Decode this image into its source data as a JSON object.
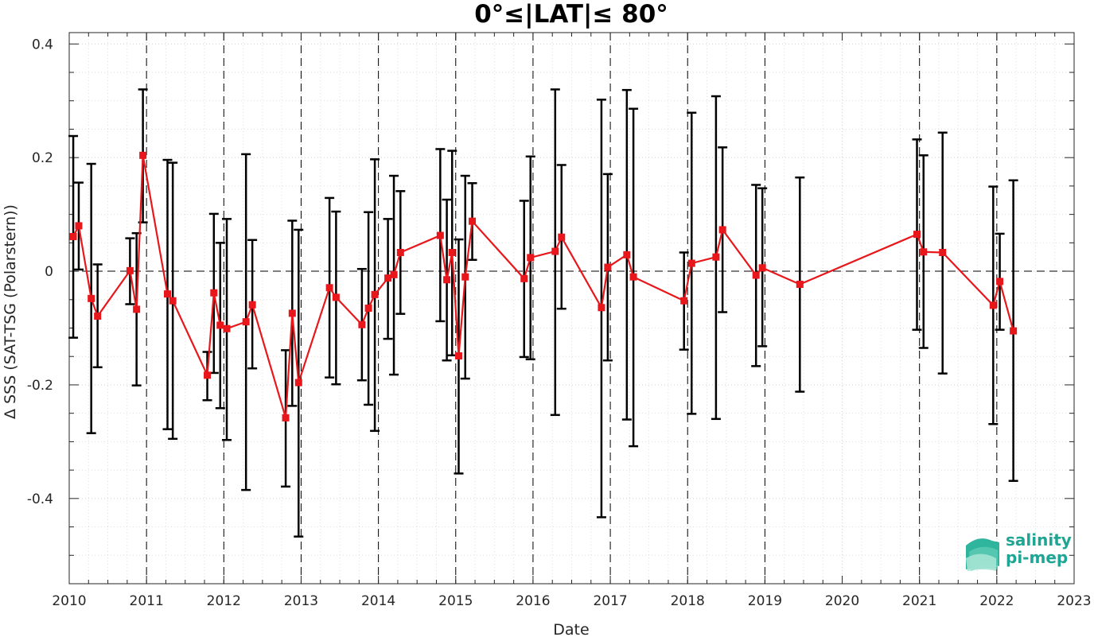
{
  "chart_data": {
    "type": "scatter",
    "title": "0°≤|LAT|≤ 80°",
    "xlabel": "Date",
    "ylabel": "Δ SSS (SAT-TSG (Polarstern))",
    "xlim": [
      "2010-01-01",
      "2023-01-01"
    ],
    "ylim": [
      -0.55,
      0.42
    ],
    "x_ticks": [
      "2010",
      "2011",
      "2012",
      "2013",
      "2014",
      "2015",
      "2016",
      "2017",
      "2018",
      "2019",
      "2020",
      "2021",
      "2022",
      "2023"
    ],
    "y_ticks": [
      -0.4,
      -0.2,
      0,
      0.2,
      0.4
    ],
    "y_tick_labels": [
      "-0.4",
      "-0.2",
      "0",
      "0.2",
      "0.4"
    ],
    "grid": "on (dotted major and minor)",
    "year_marker_lines": [
      "2011",
      "2012",
      "2013",
      "2014",
      "2015",
      "2016",
      "2017",
      "2018",
      "2019",
      "2021",
      "2022"
    ],
    "zero_line": 0,
    "series": [
      {
        "color": "#e8171b",
        "marker": "square",
        "points": [
          {
            "date": "2010-01-20",
            "y": 0.061,
            "lo": -0.117,
            "hi": 0.238
          },
          {
            "date": "2010-02-15",
            "y": 0.08,
            "lo": 0.003,
            "hi": 0.156
          },
          {
            "date": "2010-04-15",
            "y": -0.048,
            "lo": -0.285,
            "hi": 0.189
          },
          {
            "date": "2010-05-15",
            "y": -0.079,
            "lo": -0.169,
            "hi": 0.012
          },
          {
            "date": "2010-10-15",
            "y": 0.001,
            "lo": -0.058,
            "hi": 0.058
          },
          {
            "date": "2010-11-15",
            "y": -0.067,
            "lo": -0.201,
            "hi": 0.067
          },
          {
            "date": "2010-12-15",
            "y": 0.204,
            "lo": 0.086,
            "hi": 0.32
          },
          {
            "date": "2011-04-10",
            "y": -0.04,
            "lo": -0.278,
            "hi": 0.196
          },
          {
            "date": "2011-05-05",
            "y": -0.052,
            "lo": -0.295,
            "hi": 0.191
          },
          {
            "date": "2011-10-15",
            "y": -0.183,
            "lo": -0.227,
            "hi": -0.142
          },
          {
            "date": "2011-11-15",
            "y": -0.038,
            "lo": -0.179,
            "hi": 0.101
          },
          {
            "date": "2011-12-15",
            "y": -0.095,
            "lo": -0.241,
            "hi": 0.05
          },
          {
            "date": "2012-01-15",
            "y": -0.101,
            "lo": -0.297,
            "hi": 0.092
          },
          {
            "date": "2012-04-15",
            "y": -0.089,
            "lo": -0.385,
            "hi": 0.206
          },
          {
            "date": "2012-05-15",
            "y": -0.059,
            "lo": -0.171,
            "hi": 0.055
          },
          {
            "date": "2012-10-20",
            "y": -0.258,
            "lo": -0.379,
            "hi": -0.139
          },
          {
            "date": "2012-11-20",
            "y": -0.074,
            "lo": -0.237,
            "hi": 0.089
          },
          {
            "date": "2012-12-20",
            "y": -0.196,
            "lo": -0.467,
            "hi": 0.073
          },
          {
            "date": "2013-05-15",
            "y": -0.029,
            "lo": -0.187,
            "hi": 0.129
          },
          {
            "date": "2013-06-15",
            "y": -0.046,
            "lo": -0.199,
            "hi": 0.105
          },
          {
            "date": "2013-10-15",
            "y": -0.094,
            "lo": -0.192,
            "hi": 0.004
          },
          {
            "date": "2013-11-15",
            "y": -0.065,
            "lo": -0.235,
            "hi": 0.104
          },
          {
            "date": "2013-12-15",
            "y": -0.041,
            "lo": -0.281,
            "hi": 0.197
          },
          {
            "date": "2014-02-15",
            "y": -0.012,
            "lo": -0.119,
            "hi": 0.092
          },
          {
            "date": "2014-03-15",
            "y": -0.006,
            "lo": -0.182,
            "hi": 0.168
          },
          {
            "date": "2014-04-15",
            "y": 0.033,
            "lo": -0.075,
            "hi": 0.141
          },
          {
            "date": "2014-10-20",
            "y": 0.063,
            "lo": -0.088,
            "hi": 0.215
          },
          {
            "date": "2014-11-20",
            "y": -0.015,
            "lo": -0.157,
            "hi": 0.126
          },
          {
            "date": "2014-12-15",
            "y": 0.033,
            "lo": -0.148,
            "hi": 0.212
          },
          {
            "date": "2015-01-15",
            "y": -0.149,
            "lo": -0.356,
            "hi": 0.056
          },
          {
            "date": "2015-02-15",
            "y": -0.01,
            "lo": -0.189,
            "hi": 0.168
          },
          {
            "date": "2015-03-20",
            "y": 0.088,
            "lo": 0.02,
            "hi": 0.155
          },
          {
            "date": "2015-11-20",
            "y": -0.013,
            "lo": -0.151,
            "hi": 0.124
          },
          {
            "date": "2015-12-20",
            "y": 0.024,
            "lo": -0.155,
            "hi": 0.202
          },
          {
            "date": "2016-04-15",
            "y": 0.035,
            "lo": -0.253,
            "hi": 0.32
          },
          {
            "date": "2016-05-15",
            "y": 0.06,
            "lo": -0.066,
            "hi": 0.187
          },
          {
            "date": "2016-11-20",
            "y": -0.064,
            "lo": -0.433,
            "hi": 0.302
          },
          {
            "date": "2016-12-20",
            "y": 0.007,
            "lo": -0.157,
            "hi": 0.171
          },
          {
            "date": "2017-03-20",
            "y": 0.029,
            "lo": -0.261,
            "hi": 0.319
          },
          {
            "date": "2017-04-20",
            "y": -0.01,
            "lo": -0.308,
            "hi": 0.286
          },
          {
            "date": "2017-12-15",
            "y": -0.052,
            "lo": -0.138,
            "hi": 0.033
          },
          {
            "date": "2018-01-20",
            "y": 0.014,
            "lo": -0.251,
            "hi": 0.279
          },
          {
            "date": "2018-05-15",
            "y": 0.025,
            "lo": -0.26,
            "hi": 0.308
          },
          {
            "date": "2018-06-15",
            "y": 0.073,
            "lo": -0.072,
            "hi": 0.218
          },
          {
            "date": "2018-11-20",
            "y": -0.007,
            "lo": -0.167,
            "hi": 0.152
          },
          {
            "date": "2018-12-20",
            "y": 0.006,
            "lo": -0.132,
            "hi": 0.146
          },
          {
            "date": "2019-06-15",
            "y": -0.023,
            "lo": -0.212,
            "hi": 0.165
          },
          {
            "date": "2020-12-20",
            "y": 0.065,
            "lo": -0.103,
            "hi": 0.232
          },
          {
            "date": "2021-01-20",
            "y": 0.034,
            "lo": -0.135,
            "hi": 0.204
          },
          {
            "date": "2021-04-20",
            "y": 0.033,
            "lo": -0.18,
            "hi": 0.244
          },
          {
            "date": "2021-12-15",
            "y": -0.06,
            "lo": -0.269,
            "hi": 0.149
          },
          {
            "date": "2022-01-15",
            "y": -0.018,
            "lo": -0.103,
            "hi": 0.066
          },
          {
            "date": "2022-03-20",
            "y": -0.105,
            "lo": -0.369,
            "hi": 0.16
          }
        ]
      }
    ]
  },
  "logo": {
    "line1": "salinity",
    "line2": "pi-mep",
    "color": "#1fa593"
  }
}
